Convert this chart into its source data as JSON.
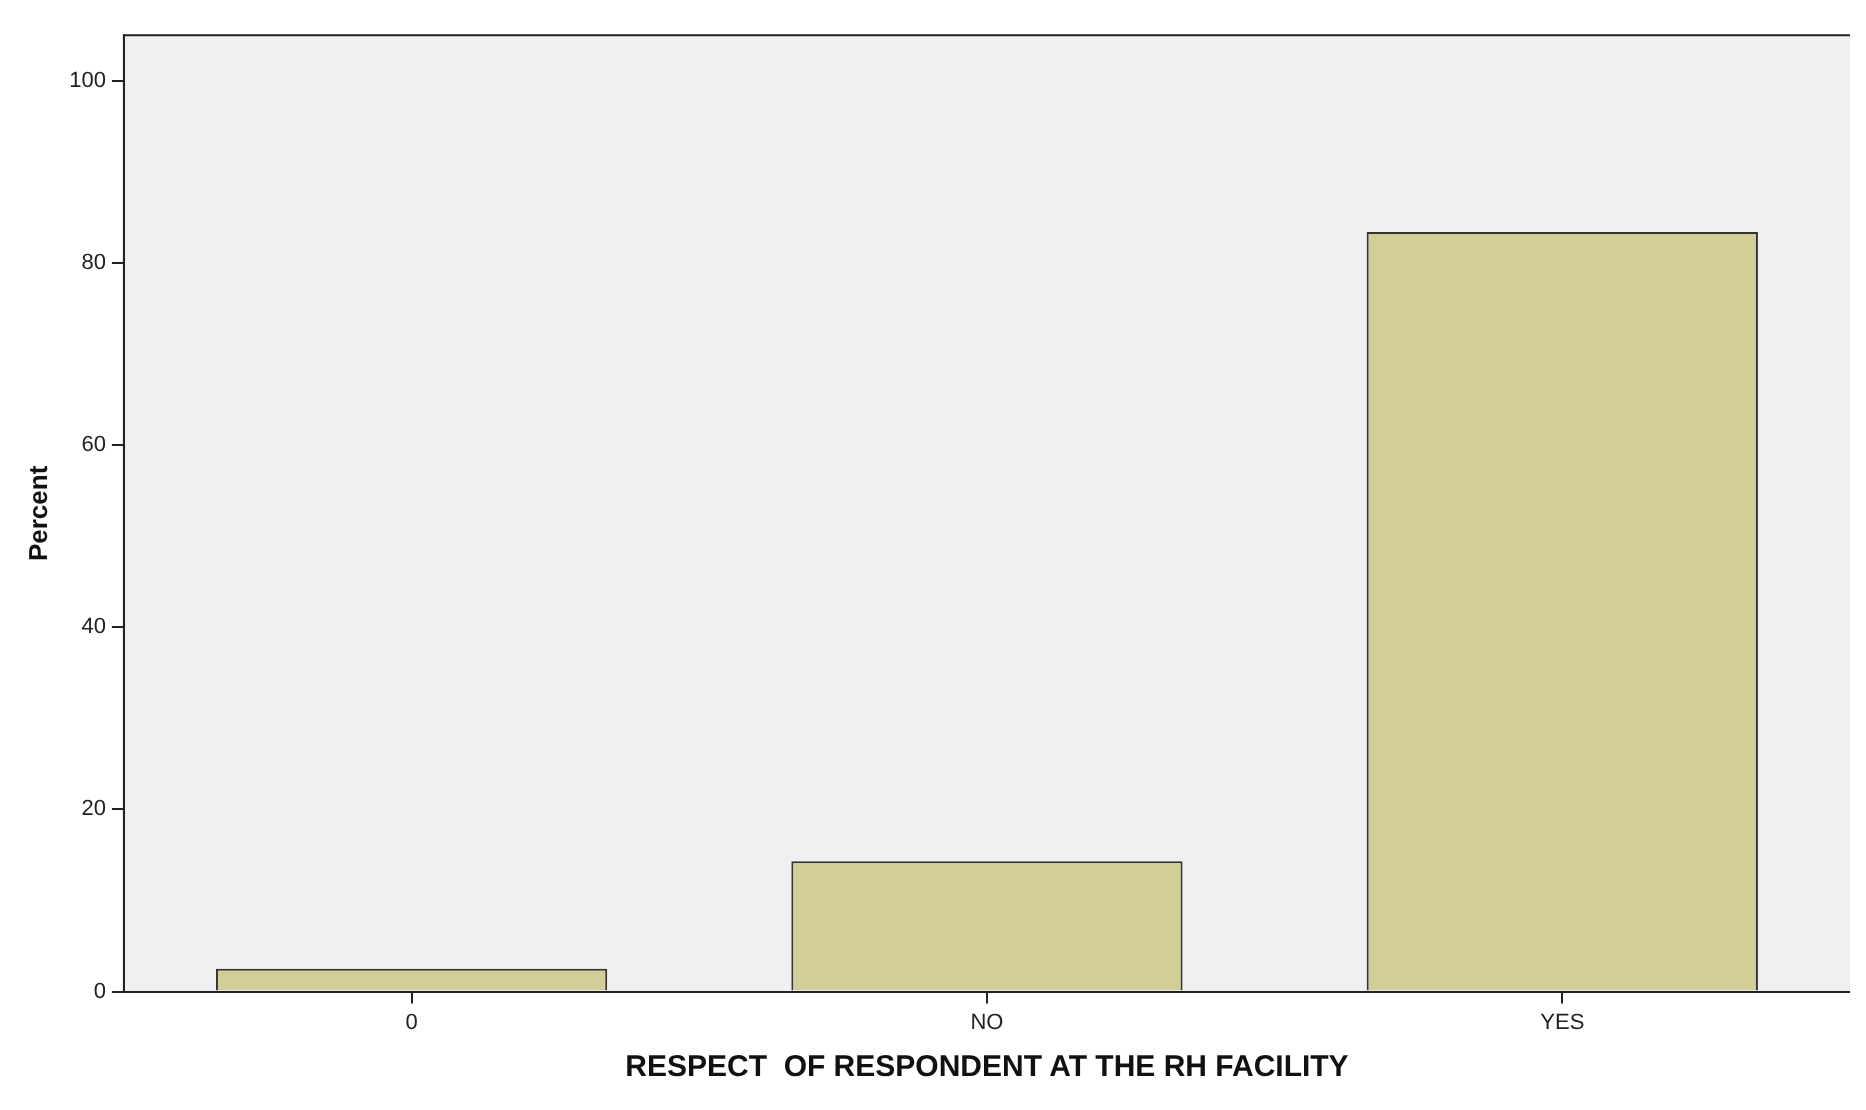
{
  "chart_data": {
    "type": "bar",
    "xlabel": "RESPECT  OF RESPONDENT AT THE RH FACILITY",
    "ylabel": "Percent",
    "categories": [
      "0",
      "NO",
      "YES"
    ],
    "values": [
      2.5,
      14.3,
      83.4
    ],
    "color": "#d3cd98",
    "ylim": [
      0,
      105
    ],
    "yticks": [
      0,
      20,
      40,
      60,
      80,
      100
    ],
    "grid": false
  }
}
